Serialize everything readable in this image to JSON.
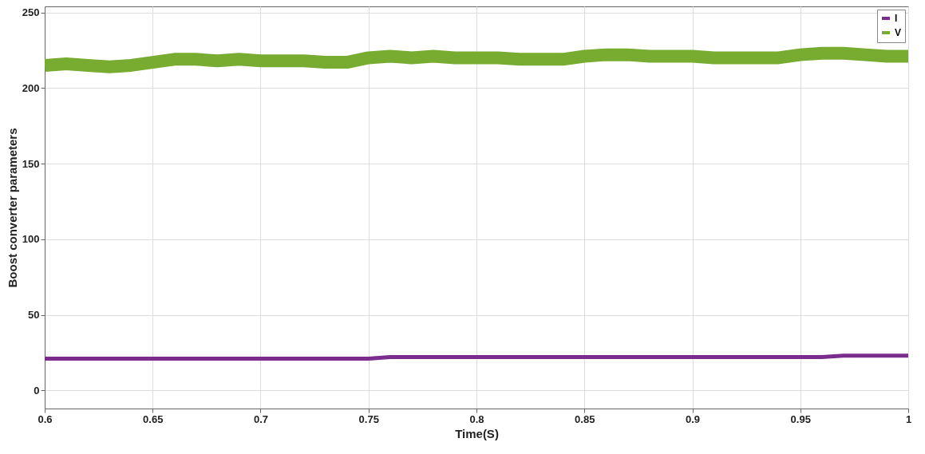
{
  "chart_data": {
    "type": "line",
    "xlabel": "Time(S)",
    "ylabel": "Boost converter parameters",
    "x": [
      0.6,
      0.61,
      0.62,
      0.63,
      0.64,
      0.65,
      0.66,
      0.67,
      0.68,
      0.69,
      0.7,
      0.71,
      0.72,
      0.73,
      0.74,
      0.75,
      0.76,
      0.77,
      0.78,
      0.79,
      0.8,
      0.81,
      0.82,
      0.83,
      0.84,
      0.85,
      0.86,
      0.87,
      0.88,
      0.89,
      0.9,
      0.91,
      0.92,
      0.93,
      0.94,
      0.95,
      0.96,
      0.97,
      0.98,
      0.99,
      1
    ],
    "series": [
      {
        "name": "I",
        "color": "#7b2d8e",
        "values": [
          21,
          21,
          21,
          21,
          21,
          21,
          21,
          21,
          21,
          21,
          21,
          21,
          21,
          21,
          21,
          21,
          22,
          22,
          22,
          22,
          22,
          22,
          22,
          22,
          22,
          22,
          22,
          22,
          22,
          22,
          22,
          22,
          22,
          22,
          22,
          22,
          22,
          23,
          23,
          23,
          23
        ]
      },
      {
        "name": "V",
        "color": "#77ac30",
        "values": [
          215,
          216,
          215,
          214,
          215,
          217,
          219,
          219,
          218,
          219,
          218,
          218,
          218,
          217,
          217,
          220,
          221,
          220,
          221,
          220,
          220,
          220,
          219,
          219,
          219,
          221,
          222,
          222,
          221,
          221,
          221,
          220,
          220,
          220,
          220,
          222,
          223,
          223,
          222,
          221,
          221
        ]
      }
    ],
    "xlim": [
      0.6,
      1
    ],
    "xticks": [
      0.6,
      0.65,
      0.7,
      0.75,
      0.8,
      0.85,
      0.9,
      0.95,
      1
    ],
    "ylim": [
      -12,
      254
    ],
    "yticks": [
      0,
      50,
      100,
      150,
      200,
      250
    ],
    "grid": true,
    "legend": "top right",
    "line_style": "solid"
  }
}
